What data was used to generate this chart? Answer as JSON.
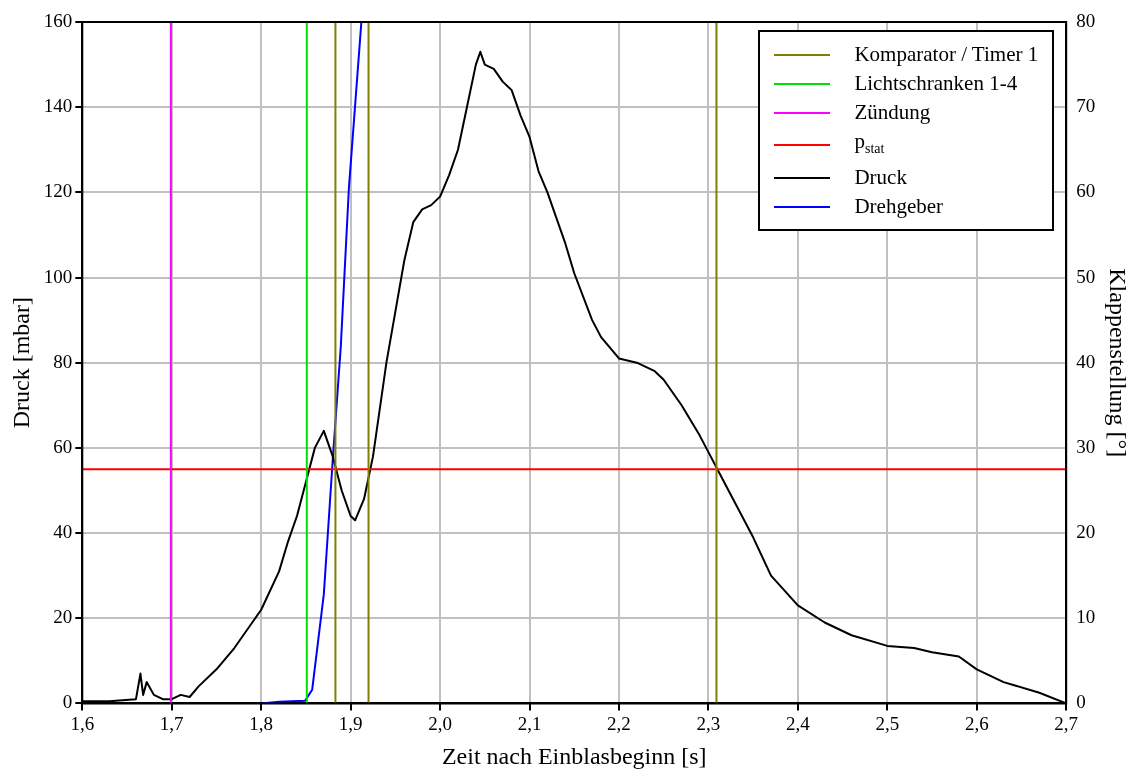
{
  "chart_data": {
    "type": "line",
    "xlabel": "Zeit nach Einblasbeginn [s]",
    "ylabel": "Druck [mbar]",
    "y2label": "Klappenstellung [°]",
    "xlim": [
      1.6,
      2.7
    ],
    "xticks": [
      {
        "value": 1.6,
        "label": "1,6"
      },
      {
        "value": 1.7,
        "label": "1,7"
      },
      {
        "value": 1.8,
        "label": "1,8"
      },
      {
        "value": 1.9,
        "label": "1,9"
      },
      {
        "value": 2.0,
        "label": "2,0"
      },
      {
        "value": 2.1,
        "label": "2,1"
      },
      {
        "value": 2.2,
        "label": "2,2"
      },
      {
        "value": 2.3,
        "label": "2,3"
      },
      {
        "value": 2.4,
        "label": "2,4"
      },
      {
        "value": 2.5,
        "label": "2,5"
      },
      {
        "value": 2.6,
        "label": "2,6"
      },
      {
        "value": 2.7,
        "label": "2,7"
      }
    ],
    "ylim": [
      0,
      160
    ],
    "yticks": [
      0,
      20,
      40,
      60,
      80,
      100,
      120,
      140,
      160
    ],
    "y2lim": [
      0,
      80
    ],
    "y2ticks": [
      0,
      10,
      20,
      30,
      40,
      50,
      60,
      70,
      80
    ],
    "grid": true,
    "legend": "top right",
    "marker": "none",
    "line_style": "solid",
    "series": [
      {
        "name": "Komparator / Timer 1",
        "color": "#808000",
        "x": [
          1.883,
          1.883
        ],
        "values": [
          0,
          160
        ]
      },
      {
        "color": "#808000",
        "x": [
          1.92,
          1.92
        ],
        "values": [
          0,
          160
        ]
      },
      {
        "color": "#808000",
        "x": [
          2.309,
          2.309
        ],
        "values": [
          0,
          160
        ]
      },
      {
        "name": "Lichtschranken 1-4",
        "color": "#00e000",
        "x": [
          1.851,
          1.851
        ],
        "values": [
          0,
          160
        ]
      },
      {
        "name": "Zündung",
        "color": "#ff00ff",
        "x": [
          1.699,
          1.699
        ],
        "values": [
          0,
          160
        ]
      },
      {
        "name": "p$_{stat}$",
        "color": "#ff0000",
        "x": [
          1.6,
          2.7
        ],
        "values": [
          55,
          55
        ]
      },
      {
        "name": "Druck",
        "color": "#000000",
        "x": [
          1.6,
          1.63,
          1.66,
          1.665,
          1.668,
          1.672,
          1.68,
          1.69,
          1.7,
          1.71,
          1.72,
          1.73,
          1.75,
          1.77,
          1.8,
          1.82,
          1.83,
          1.84,
          1.85,
          1.86,
          1.87,
          1.88,
          1.89,
          1.9,
          1.905,
          1.915,
          1.925,
          1.94,
          1.95,
          1.96,
          1.97,
          1.98,
          1.99,
          2.0,
          2.01,
          2.02,
          2.03,
          2.04,
          2.045,
          2.05,
          2.06,
          2.07,
          2.08,
          2.09,
          2.1,
          2.11,
          2.12,
          2.14,
          2.15,
          2.17,
          2.18,
          2.2,
          2.22,
          2.24,
          2.25,
          2.27,
          2.29,
          2.3,
          2.31,
          2.33,
          2.35,
          2.37,
          2.4,
          2.43,
          2.46,
          2.5,
          2.53,
          2.55,
          2.58,
          2.6,
          2.63,
          2.67,
          2.7
        ],
        "values": [
          0.5,
          0.5,
          1,
          7,
          2,
          5,
          2,
          1,
          1,
          2,
          1.5,
          4,
          8,
          13,
          22,
          31,
          38,
          44,
          52,
          60,
          64,
          58,
          50,
          44,
          43,
          48,
          58,
          80,
          92,
          104,
          113,
          116,
          117,
          119,
          124,
          130,
          140,
          150,
          153,
          150,
          149,
          146,
          144,
          138,
          133,
          125,
          120,
          108,
          101,
          90,
          86,
          81,
          80,
          78,
          76,
          70,
          63,
          59,
          55,
          47,
          39,
          30,
          23,
          19,
          16,
          13.5,
          13,
          12,
          11,
          8,
          5,
          2.5,
          0
        ]
      },
      {
        "name": "Drehgeber",
        "color": "#0000ff",
        "axis": "y2",
        "x": [
          1.8,
          1.82,
          1.849,
          1.857,
          1.87,
          1.88,
          1.889,
          1.898,
          1.912
        ],
        "values": [
          0,
          0.2,
          0.3,
          1.6,
          12.8,
          28.6,
          41.9,
          60.4,
          80
        ]
      }
    ]
  }
}
